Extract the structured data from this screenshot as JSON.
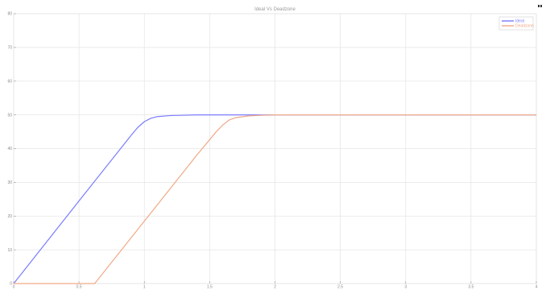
{
  "window_icon": "figure-window-icon",
  "chart_data": {
    "type": "line",
    "title": "Ideal Vs Deadzone",
    "xlabel": "",
    "ylabel": "",
    "xlim": [
      0,
      4
    ],
    "ylim": [
      0,
      80
    ],
    "xticks": [
      0,
      0.5,
      1,
      1.5,
      2,
      2.5,
      3,
      3.5,
      4
    ],
    "xtick_labels": [
      "0",
      "0.5",
      "1",
      "1.5",
      "2",
      "2.5",
      "3",
      "3.5",
      "4"
    ],
    "yticks": [
      0,
      10,
      20,
      30,
      40,
      50,
      60,
      70,
      80
    ],
    "ytick_labels": [
      "0",
      "10",
      "20",
      "30",
      "40",
      "50",
      "60",
      "70",
      "80"
    ],
    "grid": true,
    "legend_position": "top-right",
    "series": [
      {
        "name": "Ideal",
        "color": "#7b7bff",
        "x": [
          0,
          0.5,
          0.9,
          0.95,
          1.0,
          1.05,
          1.1,
          1.2,
          1.4,
          1.6,
          1.8,
          2.0,
          4.0
        ],
        "y": [
          0,
          24.5,
          44.0,
          46.3,
          48.0,
          49.0,
          49.5,
          49.8,
          50.0,
          50.0,
          50.0,
          50.0,
          50.0
        ]
      },
      {
        "name": "Deadzone",
        "color": "#f0a987",
        "x": [
          0,
          0.5,
          0.62,
          1.0,
          1.4,
          1.55,
          1.6,
          1.65,
          1.7,
          1.8,
          1.9,
          2.0,
          4.0
        ],
        "y": [
          0,
          0,
          0,
          18.5,
          38.0,
          45.0,
          47.0,
          48.5,
          49.2,
          49.7,
          49.9,
          50.0,
          50.0
        ]
      }
    ]
  }
}
